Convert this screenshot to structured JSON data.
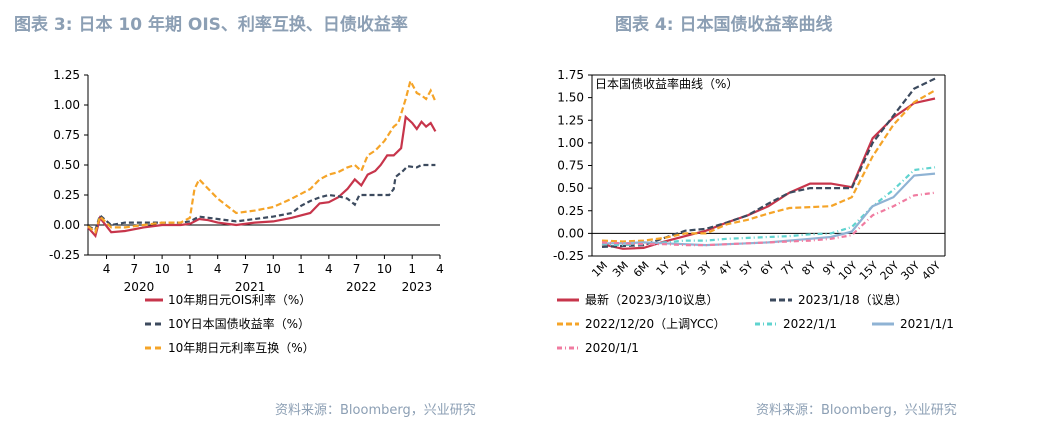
{
  "left": {
    "title": "图表 3:   日本 10 年期 OIS、利率互换、日债收益率",
    "source": "资料来源：Bloomberg，兴业研究",
    "chart_data": {
      "type": "line",
      "ylim": [
        -0.25,
        1.25
      ],
      "yticks": [
        "1.25",
        "1.00",
        "0.75",
        "0.50",
        "0.25",
        "0.00",
        "-0.25"
      ],
      "yvalues": [
        1.25,
        1.0,
        0.75,
        0.5,
        0.25,
        0.0,
        -0.25
      ],
      "month_ticks": [
        "4",
        "7",
        "10",
        "1",
        "4",
        "7",
        "10",
        "1",
        "4",
        "7",
        "10",
        "1",
        "4"
      ],
      "years": [
        "2020",
        "2021",
        "2022",
        "2023"
      ],
      "x_start": "2020-02",
      "x_end": "2023-04",
      "series": [
        {
          "name": "10年期日元OIS利率（%）",
          "color": "#c7354b",
          "dash": "",
          "points": [
            [
              0,
              -0.02
            ],
            [
              0.8,
              -0.09
            ],
            [
              1.3,
              0.06
            ],
            [
              2.5,
              -0.06
            ],
            [
              4,
              -0.05
            ],
            [
              6,
              -0.02
            ],
            [
              8,
              0.0
            ],
            [
              10,
              0.0
            ],
            [
              11,
              0.01
            ],
            [
              12,
              0.05
            ],
            [
              13,
              0.04
            ],
            [
              14,
              0.02
            ],
            [
              16,
              0.0
            ],
            [
              18,
              0.02
            ],
            [
              20,
              0.03
            ],
            [
              22,
              0.06
            ],
            [
              24,
              0.1
            ],
            [
              25,
              0.18
            ],
            [
              26,
              0.19
            ],
            [
              27,
              0.23
            ],
            [
              28,
              0.3
            ],
            [
              28.8,
              0.38
            ],
            [
              29.5,
              0.33
            ],
            [
              30.2,
              0.42
            ],
            [
              31,
              0.45
            ],
            [
              31.6,
              0.5
            ],
            [
              32.3,
              0.58
            ],
            [
              33,
              0.58
            ],
            [
              33.8,
              0.64
            ],
            [
              34.3,
              0.9
            ],
            [
              35,
              0.85
            ],
            [
              35.5,
              0.8
            ],
            [
              36,
              0.86
            ],
            [
              36.5,
              0.82
            ],
            [
              37,
              0.85
            ],
            [
              37.5,
              0.78
            ]
          ]
        },
        {
          "name": "10Y日本国债收益率（%）",
          "color": "#3c4a5e",
          "dash": "5,3",
          "points": [
            [
              0,
              -0.01
            ],
            [
              0.8,
              -0.04
            ],
            [
              1.3,
              0.08
            ],
            [
              2.5,
              0.0
            ],
            [
              4,
              0.02
            ],
            [
              6,
              0.02
            ],
            [
              8,
              0.02
            ],
            [
              10,
              0.02
            ],
            [
              11,
              0.03
            ],
            [
              12,
              0.07
            ],
            [
              13,
              0.06
            ],
            [
              14,
              0.05
            ],
            [
              16,
              0.03
            ],
            [
              18,
              0.05
            ],
            [
              20,
              0.07
            ],
            [
              22,
              0.1
            ],
            [
              23,
              0.16
            ],
            [
              24,
              0.2
            ],
            [
              25,
              0.23
            ],
            [
              26,
              0.25
            ],
            [
              27,
              0.24
            ],
            [
              28,
              0.22
            ],
            [
              28.8,
              0.17
            ],
            [
              29.3,
              0.25
            ],
            [
              31,
              0.25
            ],
            [
              32.5,
              0.25
            ],
            [
              33,
              0.3
            ],
            [
              33.2,
              0.4
            ],
            [
              34,
              0.45
            ],
            [
              34.5,
              0.49
            ],
            [
              35.5,
              0.48
            ],
            [
              36,
              0.5
            ],
            [
              37.5,
              0.5
            ]
          ]
        },
        {
          "name": "10年期日元利率互换（%）",
          "color": "#f5a428",
          "dash": "6,3",
          "points": [
            [
              0,
              -0.01
            ],
            [
              0.8,
              -0.06
            ],
            [
              1.3,
              0.07
            ],
            [
              2.5,
              -0.02
            ],
            [
              4,
              -0.02
            ],
            [
              6,
              0.0
            ],
            [
              8,
              0.02
            ],
            [
              10,
              0.02
            ],
            [
              11,
              0.06
            ],
            [
              11.5,
              0.3
            ],
            [
              12,
              0.38
            ],
            [
              13,
              0.3
            ],
            [
              14,
              0.22
            ],
            [
              16,
              0.1
            ],
            [
              18,
              0.12
            ],
            [
              20,
              0.15
            ],
            [
              22,
              0.22
            ],
            [
              24,
              0.3
            ],
            [
              25,
              0.38
            ],
            [
              26,
              0.42
            ],
            [
              27,
              0.44
            ],
            [
              28,
              0.48
            ],
            [
              28.8,
              0.5
            ],
            [
              29.5,
              0.45
            ],
            [
              30.2,
              0.58
            ],
            [
              31,
              0.62
            ],
            [
              32,
              0.7
            ],
            [
              33,
              0.82
            ],
            [
              33.5,
              0.85
            ],
            [
              34.3,
              1.05
            ],
            [
              34.8,
              1.2
            ],
            [
              35.5,
              1.1
            ],
            [
              36,
              1.08
            ],
            [
              36.5,
              1.05
            ],
            [
              37,
              1.12
            ],
            [
              37.5,
              1.03
            ]
          ]
        }
      ]
    }
  },
  "right": {
    "title": "图表 4:   日本国债收益率曲线",
    "source": "资料来源：Bloomberg，兴业研究",
    "chart_data": {
      "type": "line",
      "title": "日本国债收益率曲线（%）",
      "ylim": [
        -0.25,
        1.75
      ],
      "yticks": [
        "1.75",
        "1.50",
        "1.25",
        "1.00",
        "0.75",
        "0.50",
        "0.25",
        "0.00",
        "-0.25"
      ],
      "yvalues": [
        1.75,
        1.5,
        1.25,
        1.0,
        0.75,
        0.5,
        0.25,
        0.0,
        -0.25
      ],
      "categories": [
        "1M",
        "3M",
        "6M",
        "1Y",
        "2Y",
        "3Y",
        "4Y",
        "5Y",
        "6Y",
        "7Y",
        "8Y",
        "9Y",
        "10Y",
        "15Y",
        "20Y",
        "30Y",
        "40Y"
      ],
      "series": [
        {
          "name": "最新（2023/3/10议息）",
          "color": "#c7354b",
          "dash": "",
          "values": [
            -0.12,
            -0.17,
            -0.16,
            -0.09,
            -0.03,
            0.03,
            0.12,
            0.2,
            0.3,
            0.45,
            0.55,
            0.55,
            0.51,
            1.05,
            1.28,
            1.44,
            1.49
          ]
        },
        {
          "name": "2023/1/18（议息）",
          "color": "#3c4a5e",
          "dash": "6,3",
          "values": [
            -0.15,
            -0.14,
            -0.13,
            -0.05,
            0.03,
            0.05,
            0.12,
            0.2,
            0.33,
            0.45,
            0.5,
            0.5,
            0.5,
            1.0,
            1.3,
            1.6,
            1.71
          ]
        },
        {
          "name": "2022/12/20（上调YCC）",
          "color": "#f5a428",
          "dash": "6,3",
          "values": [
            -0.08,
            -0.09,
            -0.08,
            -0.05,
            0.0,
            0.0,
            0.1,
            0.15,
            0.22,
            0.28,
            0.29,
            0.3,
            0.4,
            0.85,
            1.2,
            1.45,
            1.58
          ]
        },
        {
          "name": "2022/1/1",
          "color": "#5fd3cf",
          "dash": "5,3,1,3",
          "values": [
            -0.12,
            -0.13,
            -0.12,
            -0.1,
            -0.08,
            -0.08,
            -0.06,
            -0.05,
            -0.04,
            -0.03,
            -0.01,
            0.0,
            0.07,
            0.3,
            0.48,
            0.7,
            0.73
          ]
        },
        {
          "name": "2021/1/1",
          "color": "#8fb3d4",
          "dash": "",
          "values": [
            -0.11,
            -0.11,
            -0.1,
            -0.11,
            -0.12,
            -0.13,
            -0.12,
            -0.11,
            -0.1,
            -0.08,
            -0.06,
            -0.04,
            0.02,
            0.3,
            0.4,
            0.64,
            0.66
          ]
        },
        {
          "name": "2020/1/1",
          "color": "#f07ba0",
          "dash": "5,3,1,3",
          "values": [
            -0.1,
            -0.11,
            -0.12,
            -0.12,
            -0.13,
            -0.13,
            -0.12,
            -0.11,
            -0.1,
            -0.09,
            -0.08,
            -0.06,
            -0.02,
            0.2,
            0.3,
            0.42,
            0.45
          ]
        }
      ]
    }
  }
}
